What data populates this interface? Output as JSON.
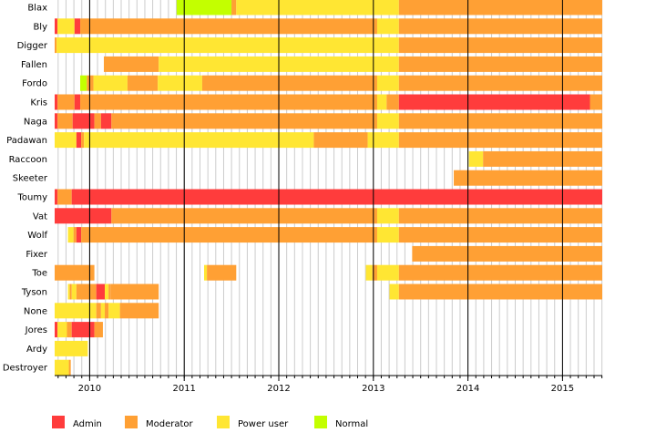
{
  "chart_data": {
    "type": "bar",
    "orientation": "horizontal-timeline",
    "title": "",
    "xlabel": "",
    "ylabel": "",
    "x_unit": "year",
    "xlim": [
      2009.63,
      2015.42
    ],
    "x_ticks": [
      2010,
      2011,
      2012,
      2013,
      2014,
      2015
    ],
    "x_tick_labels": [
      "2010",
      "2011",
      "2012",
      "2013",
      "2014",
      "2015"
    ],
    "grid": true,
    "legend_placement": "bottom",
    "roles": [
      {
        "key": "admin",
        "name": "Admin",
        "color": "#ff3c3c"
      },
      {
        "key": "moderator",
        "name": "Moderator",
        "color": "#ffa034"
      },
      {
        "key": "poweruser",
        "name": "Power user",
        "color": "#ffe633"
      },
      {
        "key": "normal",
        "name": "Normal",
        "color": "#c3ff00"
      }
    ],
    "rows": [
      {
        "name": "Blax",
        "segments": [
          {
            "role": "normal",
            "start": 2010.92,
            "end": 2011.5
          },
          {
            "role": "moderator",
            "start": 2011.5,
            "end": 2011.55
          },
          {
            "role": "poweruser",
            "start": 2011.55,
            "end": 2013.27
          },
          {
            "role": "moderator",
            "start": 2013.27,
            "end": 2015.42
          }
        ]
      },
      {
        "name": "Bly",
        "segments": [
          {
            "role": "admin",
            "start": 2009.63,
            "end": 2009.66
          },
          {
            "role": "poweruser",
            "start": 2009.66,
            "end": 2009.84
          },
          {
            "role": "admin",
            "start": 2009.84,
            "end": 2009.9
          },
          {
            "role": "moderator",
            "start": 2009.9,
            "end": 2013.04
          },
          {
            "role": "poweruser",
            "start": 2013.04,
            "end": 2013.27
          },
          {
            "role": "moderator",
            "start": 2013.27,
            "end": 2015.42
          }
        ]
      },
      {
        "name": "Digger",
        "segments": [
          {
            "role": "moderator",
            "start": 2009.63,
            "end": 2009.65
          },
          {
            "role": "poweruser",
            "start": 2009.65,
            "end": 2013.27
          },
          {
            "role": "moderator",
            "start": 2013.27,
            "end": 2015.42
          }
        ]
      },
      {
        "name": "Fallen",
        "segments": [
          {
            "role": "moderator",
            "start": 2010.15,
            "end": 2010.73
          },
          {
            "role": "poweruser",
            "start": 2010.73,
            "end": 2013.27
          },
          {
            "role": "moderator",
            "start": 2013.27,
            "end": 2015.42
          }
        ]
      },
      {
        "name": "Fordo",
        "segments": [
          {
            "role": "normal",
            "start": 2009.9,
            "end": 2009.97
          },
          {
            "role": "moderator",
            "start": 2009.97,
            "end": 2010.04
          },
          {
            "role": "poweruser",
            "start": 2010.04,
            "end": 2010.4
          },
          {
            "role": "moderator",
            "start": 2010.4,
            "end": 2010.72
          },
          {
            "role": "poweruser",
            "start": 2010.72,
            "end": 2011.19
          },
          {
            "role": "moderator",
            "start": 2011.19,
            "end": 2013.04
          },
          {
            "role": "poweruser",
            "start": 2013.04,
            "end": 2013.27
          },
          {
            "role": "moderator",
            "start": 2013.27,
            "end": 2015.42
          }
        ]
      },
      {
        "name": "Kris",
        "segments": [
          {
            "role": "admin",
            "start": 2009.63,
            "end": 2009.66
          },
          {
            "role": "moderator",
            "start": 2009.66,
            "end": 2009.84
          },
          {
            "role": "admin",
            "start": 2009.84,
            "end": 2009.9
          },
          {
            "role": "moderator",
            "start": 2009.9,
            "end": 2013.04
          },
          {
            "role": "poweruser",
            "start": 2013.04,
            "end": 2013.14
          },
          {
            "role": "moderator",
            "start": 2013.14,
            "end": 2013.27
          },
          {
            "role": "admin",
            "start": 2013.27,
            "end": 2015.29
          },
          {
            "role": "moderator",
            "start": 2015.29,
            "end": 2015.42
          }
        ]
      },
      {
        "name": "Naga",
        "segments": [
          {
            "role": "admin",
            "start": 2009.63,
            "end": 2009.66
          },
          {
            "role": "moderator",
            "start": 2009.66,
            "end": 2009.82
          },
          {
            "role": "admin",
            "start": 2009.82,
            "end": 2010.05
          },
          {
            "role": "moderator",
            "start": 2010.05,
            "end": 2010.12
          },
          {
            "role": "admin",
            "start": 2010.12,
            "end": 2010.23
          },
          {
            "role": "moderator",
            "start": 2010.23,
            "end": 2013.04
          },
          {
            "role": "poweruser",
            "start": 2013.04,
            "end": 2013.27
          },
          {
            "role": "moderator",
            "start": 2013.27,
            "end": 2015.42
          }
        ]
      },
      {
        "name": "Padawan",
        "segments": [
          {
            "role": "poweruser",
            "start": 2009.63,
            "end": 2009.86
          },
          {
            "role": "admin",
            "start": 2009.86,
            "end": 2009.91
          },
          {
            "role": "moderator",
            "start": 2009.91,
            "end": 2009.94
          },
          {
            "role": "poweruser",
            "start": 2009.94,
            "end": 2012.37
          },
          {
            "role": "moderator",
            "start": 2012.37,
            "end": 2012.94
          },
          {
            "role": "poweruser",
            "start": 2012.94,
            "end": 2013.27
          },
          {
            "role": "moderator",
            "start": 2013.27,
            "end": 2015.42
          }
        ]
      },
      {
        "name": "Raccoon",
        "segments": [
          {
            "role": "poweruser",
            "start": 2014.01,
            "end": 2014.16
          },
          {
            "role": "moderator",
            "start": 2014.16,
            "end": 2015.42
          }
        ]
      },
      {
        "name": "Skeeter",
        "segments": [
          {
            "role": "moderator",
            "start": 2013.85,
            "end": 2015.42
          }
        ]
      },
      {
        "name": "Toumy",
        "segments": [
          {
            "role": "admin",
            "start": 2009.63,
            "end": 2009.66
          },
          {
            "role": "moderator",
            "start": 2009.66,
            "end": 2009.81
          },
          {
            "role": "admin",
            "start": 2009.81,
            "end": 2015.42
          }
        ]
      },
      {
        "name": "Vat",
        "segments": [
          {
            "role": "admin",
            "start": 2009.63,
            "end": 2010.23
          },
          {
            "role": "moderator",
            "start": 2010.23,
            "end": 2013.04
          },
          {
            "role": "poweruser",
            "start": 2013.04,
            "end": 2013.27
          },
          {
            "role": "moderator",
            "start": 2013.27,
            "end": 2015.42
          }
        ]
      },
      {
        "name": "Wolf",
        "segments": [
          {
            "role": "poweruser",
            "start": 2009.77,
            "end": 2009.83
          },
          {
            "role": "moderator",
            "start": 2009.83,
            "end": 2009.86
          },
          {
            "role": "admin",
            "start": 2009.86,
            "end": 2009.91
          },
          {
            "role": "moderator",
            "start": 2009.91,
            "end": 2013.04
          },
          {
            "role": "poweruser",
            "start": 2013.04,
            "end": 2013.27
          },
          {
            "role": "moderator",
            "start": 2013.27,
            "end": 2015.42
          }
        ]
      },
      {
        "name": "Fixer",
        "segments": [
          {
            "role": "moderator",
            "start": 2013.41,
            "end": 2015.42
          }
        ]
      },
      {
        "name": "Toe",
        "segments": [
          {
            "role": "moderator",
            "start": 2009.63,
            "end": 2010.05
          },
          {
            "role": "poweruser",
            "start": 2011.21,
            "end": 2011.24
          },
          {
            "role": "moderator",
            "start": 2011.24,
            "end": 2011.55
          },
          {
            "role": "poweruser",
            "start": 2012.92,
            "end": 2012.99
          },
          {
            "role": "moderator",
            "start": 2012.99,
            "end": 2013.04
          },
          {
            "role": "poweruser",
            "start": 2013.04,
            "end": 2013.27
          },
          {
            "role": "moderator",
            "start": 2013.27,
            "end": 2015.42
          }
        ]
      },
      {
        "name": "Tyson",
        "segments": [
          {
            "role": "poweruser",
            "start": 2009.77,
            "end": 2009.79
          },
          {
            "role": "moderator",
            "start": 2009.79,
            "end": 2009.81
          },
          {
            "role": "poweruser",
            "start": 2009.81,
            "end": 2009.86
          },
          {
            "role": "moderator",
            "start": 2009.86,
            "end": 2010.07
          },
          {
            "role": "admin",
            "start": 2010.07,
            "end": 2010.16
          },
          {
            "role": "poweruser",
            "start": 2010.16,
            "end": 2010.2
          },
          {
            "role": "moderator",
            "start": 2010.2,
            "end": 2010.22
          },
          {
            "role": "moderator",
            "start": 2010.22,
            "end": 2010.73
          },
          {
            "role": "poweruser",
            "start": 2013.17,
            "end": 2013.27
          },
          {
            "role": "moderator",
            "start": 2013.27,
            "end": 2015.42
          }
        ]
      },
      {
        "name": "None",
        "segments": [
          {
            "role": "poweruser",
            "start": 2009.63,
            "end": 2010.07
          },
          {
            "role": "moderator",
            "start": 2010.07,
            "end": 2010.12
          },
          {
            "role": "poweruser",
            "start": 2010.12,
            "end": 2010.16
          },
          {
            "role": "moderator",
            "start": 2010.16,
            "end": 2010.2
          },
          {
            "role": "poweruser",
            "start": 2010.2,
            "end": 2010.32
          },
          {
            "role": "moderator",
            "start": 2010.32,
            "end": 2010.73
          }
        ]
      },
      {
        "name": "Jores",
        "segments": [
          {
            "role": "admin",
            "start": 2009.63,
            "end": 2009.66
          },
          {
            "role": "poweruser",
            "start": 2009.66,
            "end": 2009.76
          },
          {
            "role": "moderator",
            "start": 2009.76,
            "end": 2009.81
          },
          {
            "role": "admin",
            "start": 2009.81,
            "end": 2010.05
          },
          {
            "role": "moderator",
            "start": 2010.05,
            "end": 2010.14
          }
        ]
      },
      {
        "name": "Ardy",
        "segments": [
          {
            "role": "poweruser",
            "start": 2009.63,
            "end": 2009.98
          }
        ]
      },
      {
        "name": "Destroyer",
        "segments": [
          {
            "role": "poweruser",
            "start": 2009.63,
            "end": 2009.78
          },
          {
            "role": "moderator",
            "start": 2009.78,
            "end": 2009.8
          }
        ]
      }
    ]
  }
}
